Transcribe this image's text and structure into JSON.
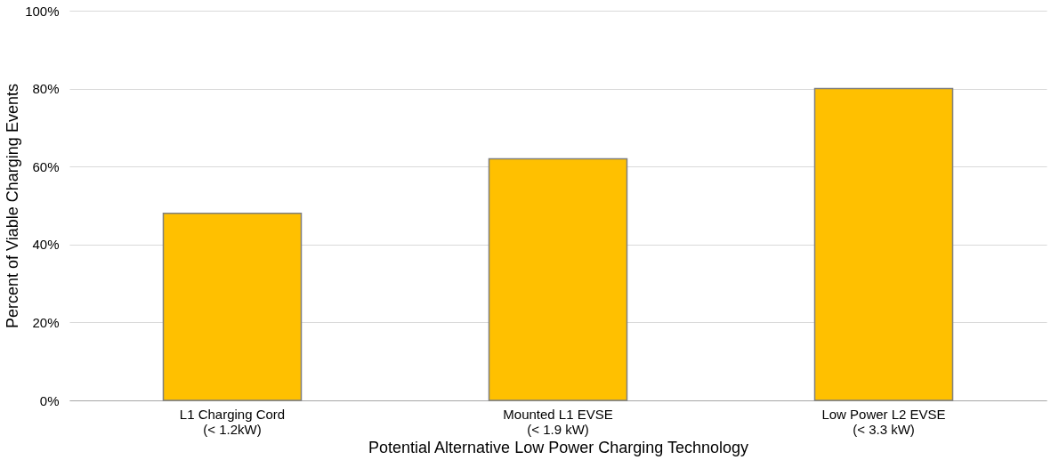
{
  "chart_data": {
    "type": "bar",
    "categories": [
      "L1 Charging Cord\n(< 1.2kW)",
      "Mounted L1 EVSE\n(< 1.9 kW)",
      "Low Power L2 EVSE\n(< 3.3 kW)"
    ],
    "values": [
      48,
      62,
      80
    ],
    "color": "#ffc000",
    "xlabel": "Potential Alternative Low Power Charging Technology",
    "ylabel": "Percent of Viable Charging Events",
    "ylim": [
      0,
      100
    ],
    "yticks": [
      {
        "value": 0,
        "label": "0%"
      },
      {
        "value": 20,
        "label": "20%"
      },
      {
        "value": 40,
        "label": "40%"
      },
      {
        "value": 60,
        "label": "60%"
      },
      {
        "value": 80,
        "label": "80%"
      },
      {
        "value": 100,
        "label": "100%"
      }
    ],
    "grid": "y"
  }
}
